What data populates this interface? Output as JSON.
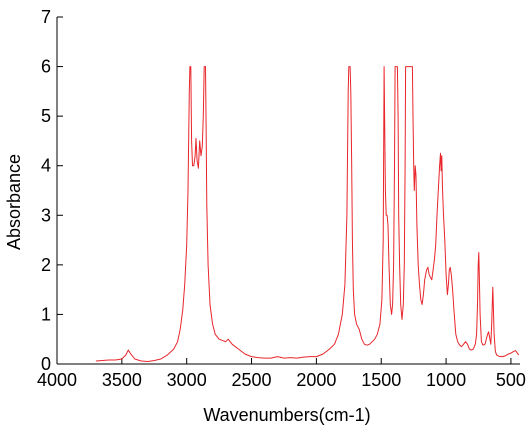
{
  "chart_data": {
    "type": "line",
    "xlabel": "Wavenumbers(cm-1)",
    "ylabel": "Absorbance",
    "xlim": [
      4000,
      430
    ],
    "ylim": [
      0,
      7
    ],
    "x_reversed": true,
    "grid": false,
    "x_ticks": [
      4000,
      3500,
      3000,
      2500,
      2000,
      1500,
      1000,
      500
    ],
    "y_ticks": [
      0,
      1,
      2,
      3,
      4,
      5,
      6,
      7
    ],
    "series": [
      {
        "color": "#e8262b",
        "points": [
          [
            3700,
            0.06
          ],
          [
            3650,
            0.07
          ],
          [
            3600,
            0.08
          ],
          [
            3550,
            0.08
          ],
          [
            3500,
            0.1
          ],
          [
            3470,
            0.18
          ],
          [
            3450,
            0.28
          ],
          [
            3430,
            0.2
          ],
          [
            3400,
            0.1
          ],
          [
            3350,
            0.06
          ],
          [
            3300,
            0.05
          ],
          [
            3250,
            0.07
          ],
          [
            3200,
            0.1
          ],
          [
            3150,
            0.18
          ],
          [
            3100,
            0.3
          ],
          [
            3070,
            0.45
          ],
          [
            3050,
            0.7
          ],
          [
            3030,
            1.1
          ],
          [
            3015,
            1.6
          ],
          [
            3000,
            2.4
          ],
          [
            2990,
            3.5
          ],
          [
            2980,
            5.5
          ],
          [
            2975,
            6.0
          ],
          [
            2968,
            6.0
          ],
          [
            2962,
            4.5
          ],
          [
            2955,
            4.0
          ],
          [
            2945,
            4.0
          ],
          [
            2935,
            4.2
          ],
          [
            2928,
            4.55
          ],
          [
            2920,
            4.1
          ],
          [
            2910,
            3.95
          ],
          [
            2900,
            4.5
          ],
          [
            2890,
            4.2
          ],
          [
            2880,
            4.4
          ],
          [
            2872,
            5.0
          ],
          [
            2865,
            6.0
          ],
          [
            2855,
            6.0
          ],
          [
            2850,
            4.8
          ],
          [
            2845,
            3.2
          ],
          [
            2835,
            2.0
          ],
          [
            2820,
            1.2
          ],
          [
            2800,
            0.8
          ],
          [
            2780,
            0.6
          ],
          [
            2750,
            0.5
          ],
          [
            2700,
            0.45
          ],
          [
            2680,
            0.5
          ],
          [
            2650,
            0.4
          ],
          [
            2600,
            0.3
          ],
          [
            2550,
            0.2
          ],
          [
            2500,
            0.15
          ],
          [
            2450,
            0.13
          ],
          [
            2400,
            0.12
          ],
          [
            2350,
            0.12
          ],
          [
            2300,
            0.15
          ],
          [
            2250,
            0.12
          ],
          [
            2200,
            0.13
          ],
          [
            2150,
            0.12
          ],
          [
            2100,
            0.14
          ],
          [
            2050,
            0.15
          ],
          [
            2000,
            0.15
          ],
          [
            1950,
            0.2
          ],
          [
            1900,
            0.3
          ],
          [
            1860,
            0.4
          ],
          [
            1830,
            0.6
          ],
          [
            1800,
            1.0
          ],
          [
            1780,
            1.6
          ],
          [
            1765,
            3.0
          ],
          [
            1755,
            5.5
          ],
          [
            1750,
            6.0
          ],
          [
            1740,
            6.0
          ],
          [
            1735,
            5.5
          ],
          [
            1728,
            4.0
          ],
          [
            1722,
            2.5
          ],
          [
            1715,
            1.5
          ],
          [
            1705,
            1.0
          ],
          [
            1690,
            0.8
          ],
          [
            1670,
            0.7
          ],
          [
            1650,
            0.5
          ],
          [
            1630,
            0.4
          ],
          [
            1610,
            0.38
          ],
          [
            1590,
            0.4
          ],
          [
            1570,
            0.45
          ],
          [
            1550,
            0.5
          ],
          [
            1530,
            0.6
          ],
          [
            1510,
            0.8
          ],
          [
            1495,
            1.3
          ],
          [
            1485,
            2.5
          ],
          [
            1478,
            6.0
          ],
          [
            1474,
            5.0
          ],
          [
            1468,
            3.5
          ],
          [
            1462,
            3.0
          ],
          [
            1455,
            3.0
          ],
          [
            1448,
            2.8
          ],
          [
            1440,
            2.0
          ],
          [
            1430,
            1.2
          ],
          [
            1420,
            1.0
          ],
          [
            1412,
            1.2
          ],
          [
            1405,
            2.0
          ],
          [
            1398,
            4.0
          ],
          [
            1393,
            6.0
          ],
          [
            1375,
            6.0
          ],
          [
            1370,
            5.0
          ],
          [
            1365,
            3.0
          ],
          [
            1358,
            2.0
          ],
          [
            1350,
            1.2
          ],
          [
            1340,
            0.9
          ],
          [
            1330,
            1.2
          ],
          [
            1322,
            2.0
          ],
          [
            1316,
            4.0
          ],
          [
            1312,
            6.0
          ],
          [
            1280,
            6.0
          ],
          [
            1260,
            6.0
          ],
          [
            1255,
            5.0
          ],
          [
            1250,
            4.0
          ],
          [
            1245,
            3.5
          ],
          [
            1238,
            4.0
          ],
          [
            1232,
            3.8
          ],
          [
            1225,
            2.8
          ],
          [
            1215,
            2.0
          ],
          [
            1205,
            1.6
          ],
          [
            1195,
            1.3
          ],
          [
            1185,
            1.2
          ],
          [
            1175,
            1.4
          ],
          [
            1165,
            1.7
          ],
          [
            1150,
            1.9
          ],
          [
            1140,
            1.95
          ],
          [
            1130,
            1.8
          ],
          [
            1120,
            1.75
          ],
          [
            1110,
            1.7
          ],
          [
            1100,
            1.9
          ],
          [
            1090,
            2.1
          ],
          [
            1080,
            2.4
          ],
          [
            1070,
            3.0
          ],
          [
            1060,
            3.5
          ],
          [
            1050,
            4.0
          ],
          [
            1043,
            4.25
          ],
          [
            1038,
            3.9
          ],
          [
            1033,
            4.2
          ],
          [
            1028,
            3.6
          ],
          [
            1020,
            3.0
          ],
          [
            1010,
            2.5
          ],
          [
            1000,
            1.8
          ],
          [
            990,
            1.4
          ],
          [
            982,
            1.6
          ],
          [
            975,
            1.9
          ],
          [
            968,
            1.95
          ],
          [
            960,
            1.8
          ],
          [
            950,
            1.5
          ],
          [
            940,
            1.1
          ],
          [
            925,
            0.6
          ],
          [
            910,
            0.45
          ],
          [
            895,
            0.38
          ],
          [
            880,
            0.35
          ],
          [
            865,
            0.4
          ],
          [
            850,
            0.45
          ],
          [
            835,
            0.4
          ],
          [
            820,
            0.3
          ],
          [
            805,
            0.28
          ],
          [
            790,
            0.3
          ],
          [
            775,
            0.4
          ],
          [
            765,
            0.6
          ],
          [
            758,
            1.2
          ],
          [
            752,
            2.0
          ],
          [
            748,
            2.25
          ],
          [
            744,
            1.8
          ],
          [
            738,
            1.0
          ],
          [
            728,
            0.45
          ],
          [
            715,
            0.38
          ],
          [
            700,
            0.4
          ],
          [
            690,
            0.5
          ],
          [
            680,
            0.6
          ],
          [
            672,
            0.65
          ],
          [
            665,
            0.55
          ],
          [
            655,
            0.4
          ],
          [
            648,
            0.8
          ],
          [
            643,
            1.3
          ],
          [
            640,
            1.55
          ],
          [
            636,
            1.2
          ],
          [
            630,
            0.6
          ],
          [
            620,
            0.25
          ],
          [
            610,
            0.18
          ],
          [
            595,
            0.16
          ],
          [
            580,
            0.15
          ],
          [
            560,
            0.15
          ],
          [
            540,
            0.17
          ],
          [
            520,
            0.2
          ],
          [
            500,
            0.22
          ],
          [
            480,
            0.25
          ],
          [
            465,
            0.27
          ],
          [
            450,
            0.22
          ],
          [
            440,
            0.18
          ]
        ]
      }
    ]
  }
}
